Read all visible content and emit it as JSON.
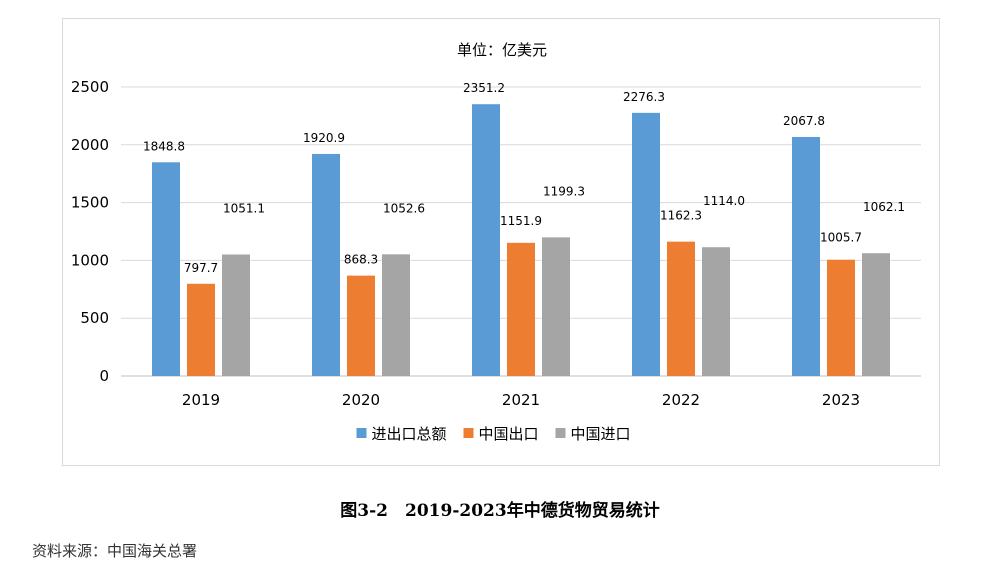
{
  "caption": "图3-2　2019-2023年中德货物贸易统计",
  "source": "资料来源：中国海关总署",
  "chart_data": {
    "type": "bar",
    "unit_label": "单位：亿美元",
    "categories": [
      "2019",
      "2020",
      "2021",
      "2022",
      "2023"
    ],
    "series": [
      {
        "name": "进出口总额",
        "color": "#5b9bd5",
        "values": [
          1848.8,
          1920.9,
          2351.2,
          2276.3,
          2067.8
        ],
        "labels": [
          "1848.8",
          "1920.9",
          "2351.2",
          "2276.3",
          "2067.8"
        ]
      },
      {
        "name": "中国出口",
        "color": "#ed7d31",
        "values": [
          797.7,
          868.3,
          1151.9,
          1162.3,
          1005.7
        ],
        "labels": [
          "797.7",
          "868.3",
          "1151.9",
          "1162.3",
          "1005.7"
        ]
      },
      {
        "name": "中国进口",
        "color": "#a5a5a5",
        "values": [
          1051.1,
          1052.6,
          1199.3,
          1114.0,
          1062.1
        ],
        "labels": [
          "1051.1",
          "1052.6",
          "1199.3",
          "1114.0",
          "1062.1"
        ]
      }
    ],
    "ylim": [
      0,
      2500
    ],
    "yticks": [
      "0",
      "500",
      "1000",
      "1500",
      "2000",
      "2500"
    ],
    "grid": true,
    "legend_position": "bottom"
  }
}
